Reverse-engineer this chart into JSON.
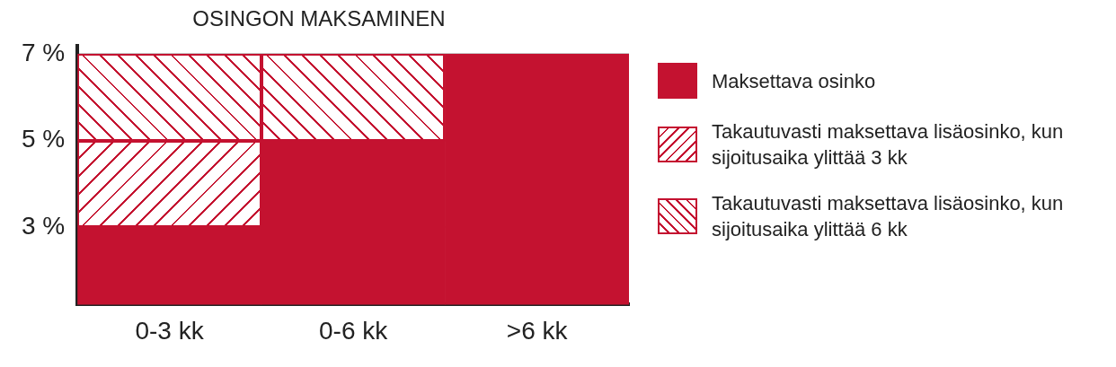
{
  "chart_data": {
    "type": "bar",
    "title": "OSINGON MAKSAMINEN",
    "stacked": true,
    "categories": [
      "0-3 kk",
      "0-6 kk",
      ">6 kk"
    ],
    "series": [
      {
        "name": "Maksettava osinko",
        "color": "#c41230",
        "values": [
          3,
          5,
          7
        ]
      },
      {
        "name": "Takautuvasti maksettava lisäosinko, kun sijoitusaika ylittää 3 kk",
        "color": "#c41230",
        "values": [
          2,
          null,
          null
        ]
      },
      {
        "name": "Takautuvasti maksettava lisäosinko, kun sijoitusaika ylittää 6 kk",
        "color": "#c41230",
        "values": [
          2,
          2,
          null
        ]
      }
    ],
    "ylim": [
      1.2,
      7.2
    ],
    "yticks": [
      {
        "value": 3,
        "label": "3 %"
      },
      {
        "value": 5,
        "label": "5 %"
      },
      {
        "value": 7,
        "label": "7 %"
      }
    ],
    "grid": "y",
    "legend": "right"
  }
}
